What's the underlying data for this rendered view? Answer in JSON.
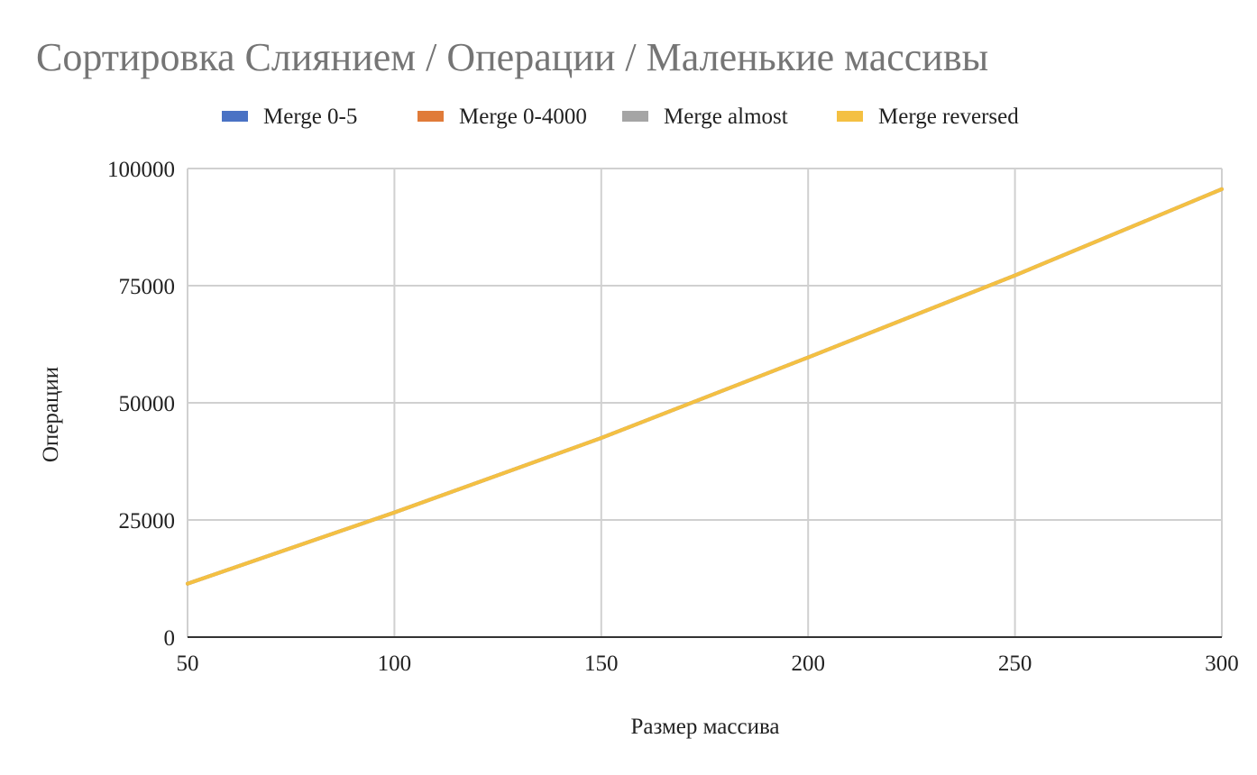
{
  "chart_data": {
    "type": "line",
    "title": "Сортировка Слиянием / Операции / Маленькие массивы",
    "xlabel": "Размер массива",
    "ylabel": "Операции",
    "xlim": [
      50,
      300
    ],
    "ylim": [
      0,
      100000
    ],
    "x_ticks": [
      "50",
      "100",
      "150",
      "200",
      "250",
      "300"
    ],
    "y_ticks": [
      "0",
      "25000",
      "50000",
      "75000",
      "100000"
    ],
    "x_tick_values": [
      50,
      100,
      150,
      200,
      250,
      300
    ],
    "y_tick_values": [
      0,
      25000,
      50000,
      75000,
      100000
    ],
    "grid": true,
    "legend_position": "top",
    "x": [
      50,
      100,
      150,
      200,
      250,
      300
    ],
    "series": [
      {
        "name": "Merge 0-5",
        "color": "#4a72c4",
        "values": [
          11400,
          26600,
          42500,
          59700,
          77200,
          95600
        ]
      },
      {
        "name": "Merge 0-4000",
        "color": "#e07b39",
        "values": [
          11400,
          26600,
          42500,
          59700,
          77200,
          95600
        ]
      },
      {
        "name": "Merge almost",
        "color": "#a5a5a5",
        "values": [
          11400,
          26600,
          42500,
          59700,
          77200,
          95600
        ]
      },
      {
        "name": "Merge reversed",
        "color": "#f4c042",
        "values": [
          11400,
          26600,
          42500,
          59700,
          77200,
          95600
        ]
      }
    ]
  }
}
